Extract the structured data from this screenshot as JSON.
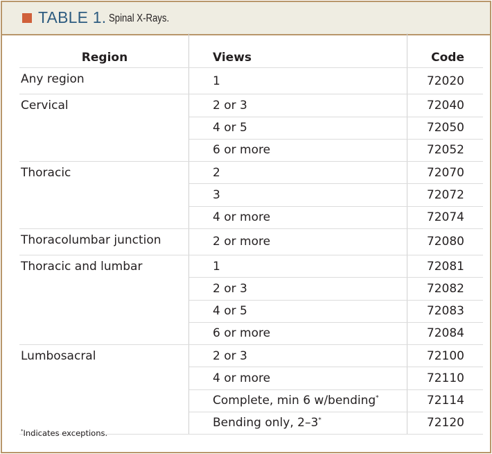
{
  "title": {
    "number": "TABLE 1.",
    "caption": "Spinal X-Rays."
  },
  "colors": {
    "accent_square": "#d0603a",
    "title": "#2e5c80",
    "border": "#b8966a",
    "header_bg": "#efede2"
  },
  "columns": [
    "Region",
    "Views",
    "Code"
  ],
  "groups": [
    {
      "region": "Any region",
      "rows": [
        {
          "views": "1",
          "code": "72020"
        }
      ]
    },
    {
      "region": "Cervical",
      "rows": [
        {
          "views": "2 or 3",
          "code": "72040"
        },
        {
          "views": "4 or 5",
          "code": "72050"
        },
        {
          "views": "6 or more",
          "code": "72052"
        }
      ]
    },
    {
      "region": "Thoracic",
      "rows": [
        {
          "views": "2",
          "code": "72070"
        },
        {
          "views": "3",
          "code": "72072"
        },
        {
          "views": "4 or more",
          "code": "72074"
        }
      ]
    },
    {
      "region": "Thoracolumbar junction",
      "rows": [
        {
          "views": "2 or more",
          "code": "72080"
        }
      ]
    },
    {
      "region": "Thoracic and lumbar",
      "rows": [
        {
          "views": "1",
          "code": "72081"
        },
        {
          "views": "2 or 3",
          "code": "72082"
        },
        {
          "views": "4 or 5",
          "code": "72083"
        },
        {
          "views": "6 or more",
          "code": "72084"
        }
      ]
    },
    {
      "region": "Lumbosacral",
      "rows": [
        {
          "views": "2 or 3",
          "code": "72100"
        },
        {
          "views": "4 or more",
          "code": "72110"
        },
        {
          "views": "Complete, min 6 w/bending",
          "mark": "*",
          "code": "72114"
        },
        {
          "views": "Bending only, 2–3",
          "mark": "*",
          "code": "72120"
        }
      ]
    }
  ],
  "footnote": {
    "mark": "*",
    "text": "Indicates exceptions."
  }
}
